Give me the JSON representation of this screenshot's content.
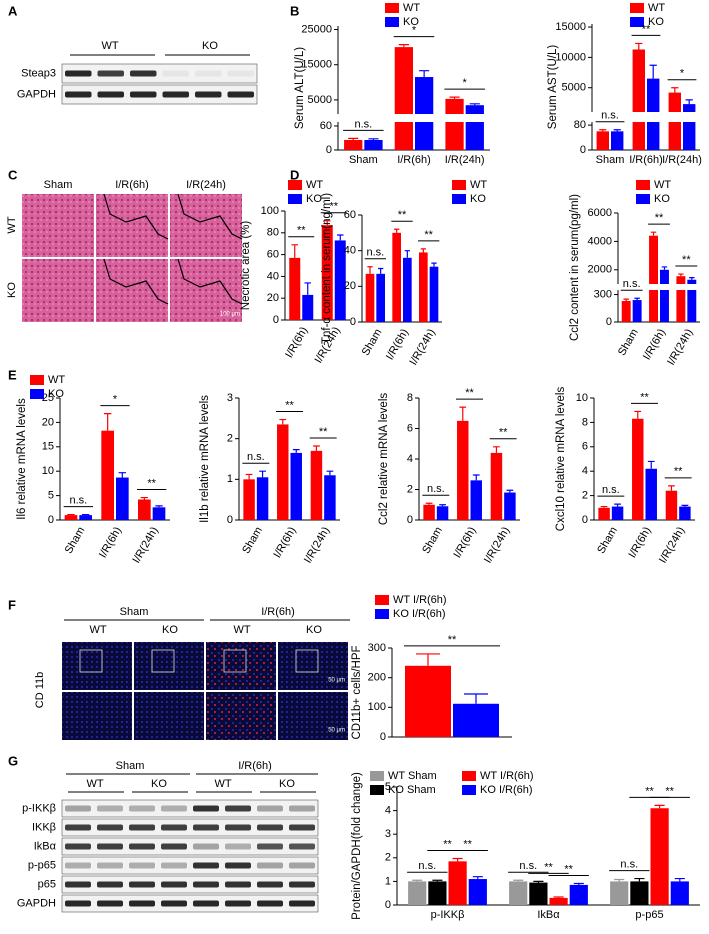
{
  "panels": [
    "A",
    "B",
    "C",
    "D",
    "E",
    "F",
    "G"
  ],
  "blot_a": {
    "groups": [
      "WT",
      "KO"
    ],
    "rows": [
      "Steap3",
      "GAPDH"
    ]
  },
  "images_c": {
    "columns": [
      "Sham",
      "I/R(6h)",
      "I/R(24h)"
    ],
    "rows": [
      "WT",
      "KO"
    ],
    "scale_bar": "100 μm"
  },
  "images_f": {
    "groups": [
      "Sham",
      "I/R(6h)"
    ],
    "columns": [
      "WT",
      "KO",
      "WT",
      "KO"
    ],
    "row": "CD 11b",
    "scale_bars": [
      "50 μm",
      "50 μm"
    ]
  },
  "blot_g": {
    "groups": [
      "Sham",
      "I/R(6h)"
    ],
    "columns": [
      "WT",
      "KO",
      "WT",
      "KO"
    ],
    "rows": [
      "p-IKKβ",
      "IKKβ",
      "IkBα",
      "p-p65",
      "p65",
      "GAPDH"
    ]
  },
  "chart_data": [
    {
      "type": "bar",
      "ylabel": "Serum ALT(U/L)",
      "categories": [
        "Sham",
        "I/R(6h)",
        "I/R(24h)"
      ],
      "series": [
        {
          "name": "WT",
          "color": "#ff0000",
          "values": [
            25,
            20000,
            5300
          ],
          "errors": [
            4,
            700,
            500
          ]
        },
        {
          "name": "KO",
          "color": "#0000ff",
          "values": [
            25,
            11500,
            3500
          ],
          "errors": [
            3,
            1800,
            400
          ]
        }
      ],
      "segments": [
        {
          "ylim": [
            0,
            70
          ],
          "yticks": [
            0,
            60
          ]
        },
        {
          "ylim": [
            1000,
            26000
          ],
          "yticks": [
            5000,
            15000,
            25000
          ]
        }
      ],
      "annotations": [
        "n.s.",
        "*",
        "*"
      ]
    },
    {
      "type": "bar",
      "ylabel": "Serum AST(U/L)",
      "categories": [
        "Sham",
        "I/R(6h)",
        "I/R(24h)"
      ],
      "series": [
        {
          "name": "WT",
          "color": "#ff0000",
          "values": [
            60,
            11300,
            4200
          ],
          "errors": [
            5,
            1000,
            800
          ]
        },
        {
          "name": "KO",
          "color": "#0000ff",
          "values": [
            60,
            6500,
            2300
          ],
          "errors": [
            5,
            2200,
            700
          ]
        }
      ],
      "segments": [
        {
          "ylim": [
            0,
            90
          ],
          "yticks": [
            0,
            80
          ]
        },
        {
          "ylim": [
            1000,
            15500
          ],
          "yticks": [
            5000,
            10000,
            15000
          ]
        }
      ],
      "annotations": [
        "n.s.",
        "**",
        "*"
      ]
    },
    {
      "type": "bar",
      "ylabel": "Necrotic area (%)",
      "categories": [
        "I/R(6h)",
        "I/R(24h)"
      ],
      "series": [
        {
          "name": "WT",
          "color": "#ff0000",
          "values": [
            57,
            87
          ],
          "errors": [
            12,
            4
          ]
        },
        {
          "name": "KO",
          "color": "#0000ff",
          "values": [
            23,
            73
          ],
          "errors": [
            11,
            5
          ]
        }
      ],
      "ylim": [
        0,
        100
      ],
      "yticks": [
        0,
        20,
        40,
        60,
        80,
        100
      ],
      "annotations": [
        "**",
        "**"
      ]
    },
    {
      "type": "bar",
      "ylabel": "Tnf-α content in serum(ng/ml)",
      "categories": [
        "Sham",
        "I/R(6h)",
        "I/R(24h)"
      ],
      "series": [
        {
          "name": "WT",
          "color": "#ff0000",
          "values": [
            27,
            50,
            39
          ],
          "errors": [
            4,
            2,
            2
          ]
        },
        {
          "name": "KO",
          "color": "#0000ff",
          "values": [
            27,
            36,
            31
          ],
          "errors": [
            3,
            4,
            2
          ]
        }
      ],
      "ylim": [
        0,
        60
      ],
      "yticks": [
        0,
        20,
        40,
        60
      ],
      "annotations": [
        "n.s.",
        "**",
        "**"
      ]
    },
    {
      "type": "bar",
      "ylabel": "Ccl2 content in serum(pg/ml)",
      "categories": [
        "Sham",
        "I/R(6h)",
        "I/R(24h)"
      ],
      "series": [
        {
          "name": "WT",
          "color": "#ff0000",
          "values": [
            230,
            4400,
            1550
          ],
          "errors": [
            20,
            250,
            150
          ]
        },
        {
          "name": "KO",
          "color": "#0000ff",
          "values": [
            240,
            2000,
            1300
          ],
          "errors": [
            20,
            200,
            150
          ]
        }
      ],
      "segments": [
        {
          "ylim": [
            0,
            350
          ],
          "yticks": [
            0,
            300
          ]
        },
        {
          "ylim": [
            1000,
            6000
          ],
          "yticks": [
            2000,
            4000,
            6000
          ]
        }
      ],
      "annotations": [
        "n.s.",
        "**",
        "**"
      ]
    },
    {
      "type": "bar",
      "ylabel": "Il6 relative mRNA levels",
      "categories": [
        "Sham",
        "I/R(6h)",
        "I/R(24h)"
      ],
      "series": [
        {
          "name": "WT",
          "color": "#ff0000",
          "values": [
            1,
            18.3,
            4.2
          ],
          "errors": [
            0.1,
            3.5,
            0.4
          ]
        },
        {
          "name": "KO",
          "color": "#0000ff",
          "values": [
            1,
            8.7,
            2.6
          ],
          "errors": [
            0.1,
            1,
            0.3
          ]
        }
      ],
      "ylim": [
        0,
        25
      ],
      "yticks": [
        0,
        5,
        10,
        15,
        20,
        25
      ],
      "annotations": [
        "n.s.",
        "*",
        "**"
      ]
    },
    {
      "type": "bar",
      "ylabel": "Il1b relative mRNA levels",
      "categories": [
        "Sham",
        "I/R(6h)",
        "I/R(24h)"
      ],
      "series": [
        {
          "color": "#ff0000",
          "values": [
            1,
            2.35,
            1.7
          ],
          "errors": [
            0.12,
            0.12,
            0.12
          ]
        },
        {
          "color": "#0000ff",
          "values": [
            1.05,
            1.65,
            1.1
          ],
          "errors": [
            0.15,
            0.08,
            0.1
          ]
        }
      ],
      "ylim": [
        0,
        3
      ],
      "yticks": [
        0,
        1,
        2,
        3
      ],
      "annotations": [
        "n.s.",
        "**",
        "**"
      ]
    },
    {
      "type": "bar",
      "ylabel": "Ccl2 relative mRNA levels",
      "categories": [
        "Sham",
        "I/R(6h)",
        "I/R(24h)"
      ],
      "series": [
        {
          "color": "#ff0000",
          "values": [
            1,
            6.5,
            4.4
          ],
          "errors": [
            0.1,
            0.9,
            0.4
          ]
        },
        {
          "color": "#0000ff",
          "values": [
            0.9,
            2.6,
            1.8
          ],
          "errors": [
            0.1,
            0.35,
            0.15
          ]
        }
      ],
      "ylim": [
        0,
        8
      ],
      "yticks": [
        0,
        2,
        4,
        6,
        8
      ],
      "annotations": [
        "n.s.",
        "**",
        "**"
      ]
    },
    {
      "type": "bar",
      "ylabel": "Cxcl10 relative mRNA levels",
      "categories": [
        "Sham",
        "I/R(6h)",
        "I/R(24h)"
      ],
      "series": [
        {
          "color": "#ff0000",
          "values": [
            1,
            8.3,
            2.4
          ],
          "errors": [
            0.1,
            0.6,
            0.4
          ]
        },
        {
          "color": "#0000ff",
          "values": [
            1.1,
            4.2,
            1.1
          ],
          "errors": [
            0.2,
            0.6,
            0.1
          ]
        }
      ],
      "ylim": [
        0,
        10
      ],
      "yticks": [
        0,
        2,
        4,
        6,
        8,
        10
      ],
      "annotations": [
        "n.s.",
        "**",
        "**"
      ]
    },
    {
      "type": "bar",
      "ylabel": "CD11b+ cells/HPF",
      "categories": [
        null
      ],
      "series": [
        {
          "name": "WT I/R(6h)",
          "color": "#ff0000",
          "values": [
            240
          ],
          "errors": [
            40
          ]
        },
        {
          "name": "KO I/R(6h)",
          "color": "#0000ff",
          "values": [
            112
          ],
          "errors": [
            33
          ]
        }
      ],
      "ylim": [
        0,
        300
      ],
      "yticks": [
        0,
        100,
        200,
        300
      ],
      "annotations": [
        "**"
      ]
    },
    {
      "type": "bar",
      "ylabel": "Protein/GAPDH(fold change)",
      "categories": [
        "p-IKKβ",
        "IkBα",
        "p-p65"
      ],
      "series": [
        {
          "name": "WT Sham",
          "color": "#999999",
          "values": [
            1,
            1,
            1
          ],
          "errors": [
            0.05,
            0.05,
            0.08
          ]
        },
        {
          "name": "KO Sham",
          "color": "#000000",
          "values": [
            1,
            0.95,
            1
          ],
          "errors": [
            0.05,
            0.05,
            0.12
          ]
        },
        {
          "name": "WT I/R(6h)",
          "color": "#ff0000",
          "values": [
            1.85,
            0.3,
            4.1
          ],
          "errors": [
            0.12,
            0.04,
            0.12
          ]
        },
        {
          "name": "KO I/R(6h)",
          "color": "#0000ff",
          "values": [
            1.1,
            0.85,
            1
          ],
          "errors": [
            0.1,
            0.06,
            0.12
          ]
        }
      ],
      "ylim": [
        0,
        5
      ],
      "yticks": [
        0,
        1,
        2,
        3,
        4,
        5
      ],
      "annotations": [
        "n.s.",
        "**",
        "**",
        "n.s.",
        "**",
        "**",
        "n.s.",
        "**",
        "**"
      ]
    }
  ]
}
